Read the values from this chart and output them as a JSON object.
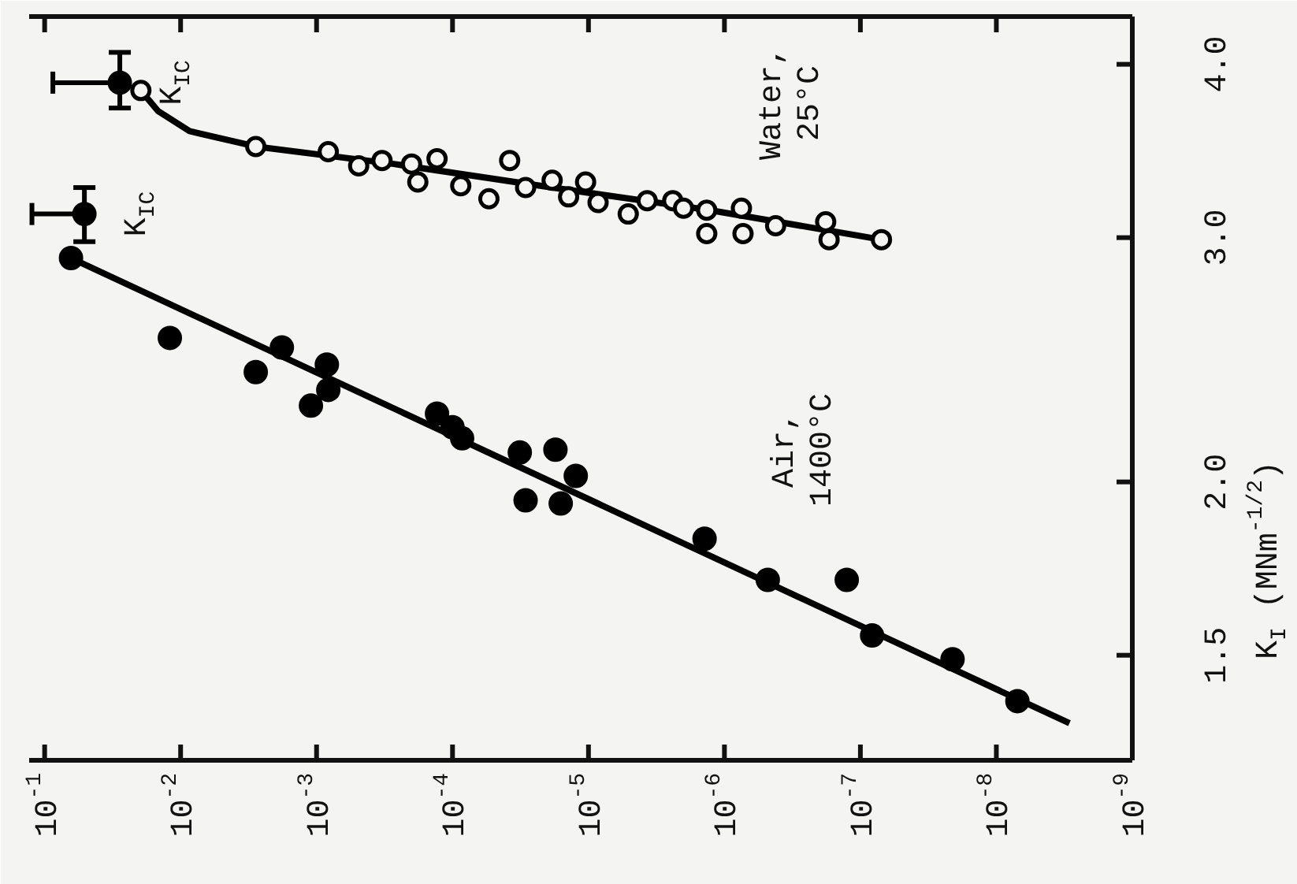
{
  "chart_data": {
    "type": "scatter",
    "log": "xy",
    "ylabel": "K$_{I}$ (MNm$^{-1/2}$)",
    "xlim": [
      0.13,
      1e-09
    ],
    "ylim": [
      1.26,
      4.33
    ],
    "xticks": [
      {
        "value": 0.1,
        "label": "10$^{-1}$"
      },
      {
        "value": 0.01,
        "label": "10$^{-2}$"
      },
      {
        "value": 0.001,
        "label": "10$^{-3}$"
      },
      {
        "value": 0.0001,
        "label": "10$^{-4}$"
      },
      {
        "value": 1e-05,
        "label": "10$^{-5}$"
      },
      {
        "value": 1e-06,
        "label": "10$^{-6}$"
      },
      {
        "value": 1e-07,
        "label": "10$^{-7}$"
      },
      {
        "value": 1e-08,
        "label": "10$^{-8}$"
      },
      {
        "value": 1e-09,
        "label": "10$^{-9}$"
      }
    ],
    "yticks": [
      {
        "value": 1.5,
        "label": "1.5"
      },
      {
        "value": 2.0,
        "label": "2.0"
      },
      {
        "value": 3.0,
        "label": "3.0"
      },
      {
        "value": 4.0,
        "label": "4.0"
      }
    ],
    "series": [
      {
        "name": "Air, 1400°C",
        "marker": "circle",
        "color": "#000000",
        "x": [
          0.064,
          0.012,
          0.0028,
          0.0018,
          0.0011,
          0.00084,
          0.00082,
          0.00013,
          0.0001,
          8.5e-05,
          3.2e-05,
          1.75e-05,
          2.9e-05,
          1.6e-05,
          1.24e-05,
          1.4e-06,
          4.8e-07,
          1.26e-07,
          8.2e-08,
          2.1e-08,
          7e-09
        ],
        "values": [
          2.9,
          2.54,
          2.4,
          2.5,
          2.27,
          2.43,
          2.33,
          2.24,
          2.19,
          2.15,
          2.1,
          2.11,
          1.94,
          1.93,
          2.02,
          1.82,
          1.7,
          1.7,
          1.55,
          1.49,
          1.39
        ]
      },
      {
        "type": "line",
        "color": "#000000",
        "x": [
          0.064,
          2.9e-09
        ],
        "values": [
          2.9,
          1.34
        ]
      },
      {
        "name": "Water, 25°C",
        "marker": "circle",
        "color": "#000000",
        "x": [
          0.0196,
          0.0028,
          0.00082,
          0.00049,
          0.00033,
          0.0002,
          0.00018,
          0.00013,
          8.7e-05,
          5.4e-05,
          3.8e-05,
          2.9e-05,
          1.85e-05,
          1.4e-05,
          1.05e-05,
          8.5e-06,
          5.1e-06,
          3.7e-06,
          2.4e-06,
          2e-06,
          1.35e-06,
          1.35e-06,
          7.5e-07,
          7.3e-07,
          4.2e-07,
          1.8e-07,
          1.7e-07,
          7e-08
        ],
        "values": [
          3.83,
          3.49,
          3.46,
          3.38,
          3.41,
          3.39,
          3.29,
          3.42,
          3.27,
          3.2,
          3.41,
          3.26,
          3.3,
          3.21,
          3.29,
          3.18,
          3.12,
          3.19,
          3.19,
          3.15,
          3.14,
          3.02,
          3.15,
          3.02,
          3.06,
          3.08,
          2.99,
          2.99
        ]
      },
      {
        "type": "line",
        "color": "#000000",
        "x": [
          0.0196,
          0.0146,
          0.0086,
          0.0028,
          0.00027,
          1.85e-05,
          1.28e-06,
          7e-08
        ],
        "values": [
          3.83,
          3.7,
          3.58,
          3.49,
          3.39,
          3.26,
          3.14,
          2.99
        ]
      },
      {
        "marker": "circle",
        "color": "#000000",
        "x": [
          0.051,
          0.028
        ],
        "values": [
          3.12,
          3.88
        ],
        "errors": [
          [
            2.98,
            3.26
          ],
          [
            3.72,
            4.08
          ]
        ],
        "xerrors": [
          [
            0.051,
            0.124
          ],
          [
            0.028,
            0.087
          ]
        ]
      }
    ],
    "annotations": [
      {
        "text": "K$_{IC}$",
        "x": 0.051,
        "y": 3.12
      },
      {
        "text": "K$_{IC}$",
        "x": 0.028,
        "y": 3.88
      }
    ]
  }
}
